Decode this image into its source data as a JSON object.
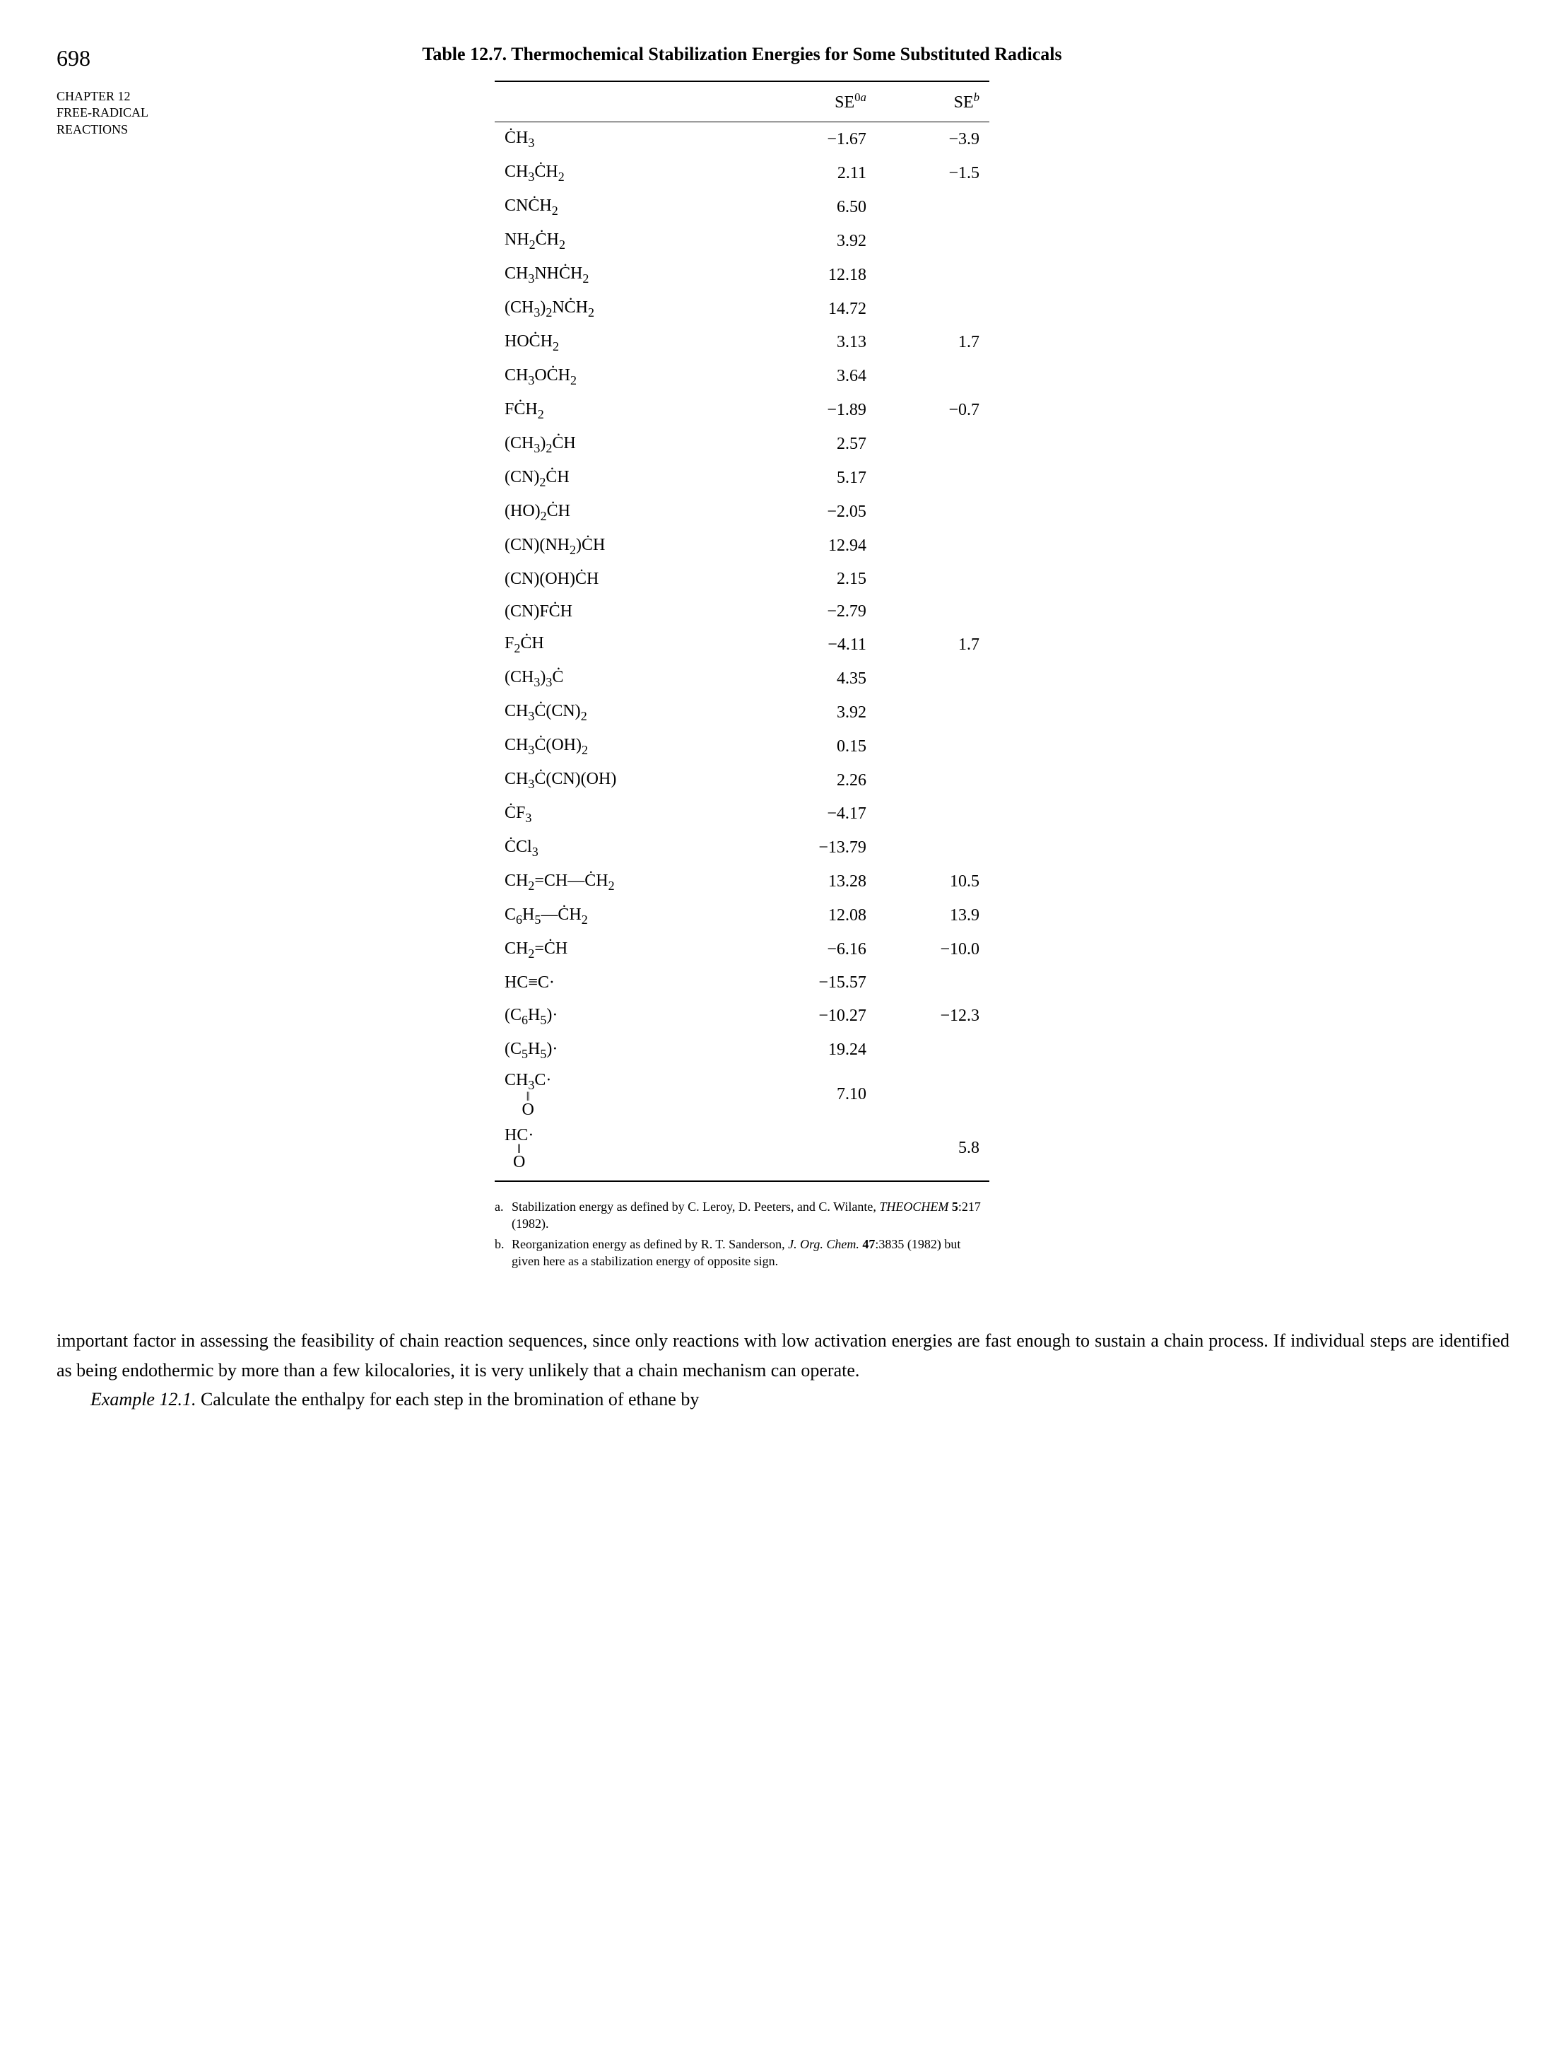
{
  "page_number": "698",
  "chapter_label_1": "CHAPTER 12",
  "chapter_label_2": "FREE-RADICAL",
  "chapter_label_3": "REACTIONS",
  "table": {
    "title": "Table 12.7. Thermochemical Stabilization Energies for Some Substituted Radicals",
    "col_header_1": "",
    "col_header_2_html": "SE<sup>0<i>a</i></sup>",
    "col_header_3_html": "SE<sup><i>b</i></sup>",
    "rows": [
      {
        "formula": "ĊH<sub>3</sub>",
        "se0a": "−1.67",
        "seb": "−3.9"
      },
      {
        "formula": "CH<sub>3</sub>ĊH<sub>2</sub>",
        "se0a": "2.11",
        "seb": "−1.5"
      },
      {
        "formula": "CNĊH<sub>2</sub>",
        "se0a": "6.50",
        "seb": ""
      },
      {
        "formula": "NH<sub>2</sub>ĊH<sub>2</sub>",
        "se0a": "3.92",
        "seb": ""
      },
      {
        "formula": "CH<sub>3</sub>NHĊH<sub>2</sub>",
        "se0a": "12.18",
        "seb": ""
      },
      {
        "formula": "(CH<sub>3</sub>)<sub>2</sub>NĊH<sub>2</sub>",
        "se0a": "14.72",
        "seb": ""
      },
      {
        "formula": "HOĊH<sub>2</sub>",
        "se0a": "3.13",
        "seb": "1.7"
      },
      {
        "formula": "CH<sub>3</sub>OĊH<sub>2</sub>",
        "se0a": "3.64",
        "seb": ""
      },
      {
        "formula": "FĊH<sub>2</sub>",
        "se0a": "−1.89",
        "seb": "−0.7"
      },
      {
        "formula": "(CH<sub>3</sub>)<sub>2</sub>ĊH",
        "se0a": "2.57",
        "seb": ""
      },
      {
        "formula": "(CN)<sub>2</sub>ĊH",
        "se0a": "5.17",
        "seb": ""
      },
      {
        "formula": "(HO)<sub>2</sub>ĊH",
        "se0a": "−2.05",
        "seb": ""
      },
      {
        "formula": "(CN)(NH<sub>2</sub>)ĊH",
        "se0a": "12.94",
        "seb": ""
      },
      {
        "formula": "(CN)(OH)ĊH",
        "se0a": "2.15",
        "seb": ""
      },
      {
        "formula": "(CN)FĊH",
        "se0a": "−2.79",
        "seb": ""
      },
      {
        "formula": "F<sub>2</sub>ĊH",
        "se0a": "−4.11",
        "seb": "1.7"
      },
      {
        "formula": "(CH<sub>3</sub>)<sub>3</sub>Ċ",
        "se0a": "4.35",
        "seb": ""
      },
      {
        "formula": "CH<sub>3</sub>Ċ(CN)<sub>2</sub>",
        "se0a": "3.92",
        "seb": ""
      },
      {
        "formula": "CH<sub>3</sub>Ċ(OH)<sub>2</sub>",
        "se0a": "0.15",
        "seb": ""
      },
      {
        "formula": "CH<sub>3</sub>Ċ(CN)(OH)",
        "se0a": "2.26",
        "seb": ""
      },
      {
        "formula": "ĊF<sub>3</sub>",
        "se0a": "−4.17",
        "seb": ""
      },
      {
        "formula": "ĊCl<sub>3</sub>",
        "se0a": "−13.79",
        "seb": ""
      },
      {
        "formula": "CH<sub>2</sub>=CH—ĊH<sub>2</sub>",
        "se0a": "13.28",
        "seb": "10.5"
      },
      {
        "formula": "C<sub>6</sub>H<sub>5</sub>—ĊH<sub>2</sub>",
        "se0a": "12.08",
        "seb": "13.9"
      },
      {
        "formula": "CH<sub>2</sub>=ĊH",
        "se0a": "−6.16",
        "seb": "−10.0"
      },
      {
        "formula": "HC≡C·",
        "se0a": "−15.57",
        "seb": ""
      },
      {
        "formula": "(C<sub>6</sub>H<sub>5</sub>)·",
        "se0a": "−10.27",
        "seb": "−12.3"
      },
      {
        "formula": "(C<sub>5</sub>H<sub>5</sub>)·",
        "se0a": "19.24",
        "seb": ""
      },
      {
        "formula": "<span class=\"acetyl\"><span class=\"top\">CH<sub>3</sub>C·</span><span class=\"mid\">‖</span><span class=\"bot\">O</span></span>",
        "se0a": "7.10",
        "seb": ""
      },
      {
        "formula": "<span class=\"acetyl\"><span class=\"top\">HC·</span><span class=\"mid\">‖</span><span class=\"bot\">O</span></span>",
        "se0a": "",
        "seb": "5.8"
      }
    ],
    "footnote_a_html": "Stabilization energy as defined by C. Leroy, D. Peeters, and C. Wilante, <i>THEOCHEM</i> <b>5</b>:217 (1982).",
    "footnote_b_html": "Reorganization energy as defined by R. T. Sanderson, <i>J. Org. Chem.</i> <b>47</b>:3835 (1982) but given here as a stabilization energy of opposite sign."
  },
  "body_paragraph_1": "important factor in assessing the feasibility of chain reaction sequences, since only reactions with low activation energies are fast enough to sustain a chain process. If individual steps are identified as being endothermic by more than a few kilocalories, it is very unlikely that a chain mechanism can operate.",
  "body_paragraph_2_html": "<i>Example 12.1.</i> Calculate the enthalpy for each step in the bromination of ethane by"
}
